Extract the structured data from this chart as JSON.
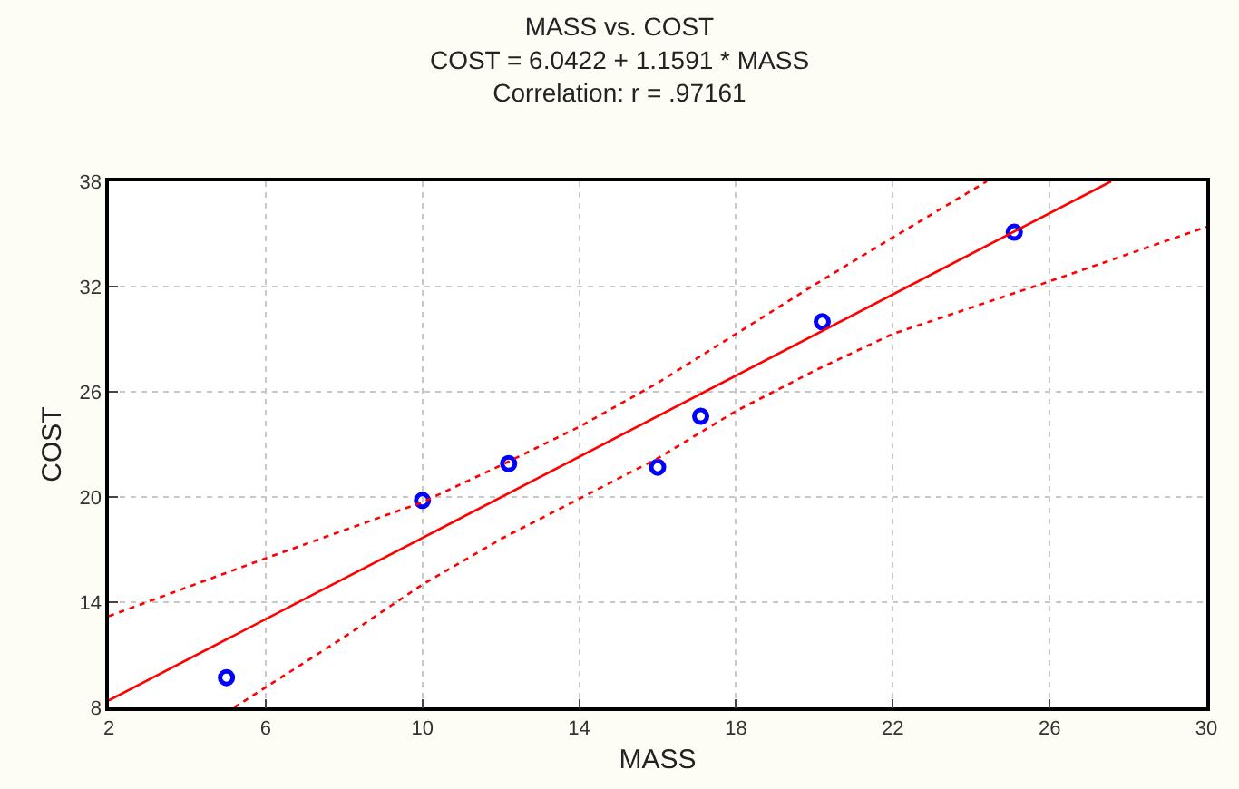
{
  "chart_data": {
    "type": "scatter",
    "title": "MASS vs. COST",
    "subtitle": "COST = 6.0422 + 1.1591 * MASS\nCorrelation: r = .97161",
    "xlabel": "MASS",
    "ylabel": "COST",
    "xlim": [
      2,
      30
    ],
    "xticks": [
      2,
      6,
      10,
      14,
      18,
      22,
      26,
      30
    ],
    "ylim": [
      8,
      38
    ],
    "yticks": [
      8,
      14,
      20,
      26,
      32,
      38
    ],
    "grid": true,
    "series": [
      {
        "color": "#0000ff",
        "marker": "circle",
        "x": [
          5.0,
          10.0,
          12.2,
          16.0,
          17.1,
          20.2,
          25.1
        ],
        "values": [
          9.7,
          19.8,
          21.9,
          21.7,
          24.6,
          30.0,
          35.1
        ]
      },
      {
        "type": "line",
        "color": "#ff0000",
        "marker": "none",
        "line_style": "solid",
        "x": [
          2,
          27.57
        ],
        "values": [
          8.4,
          38
        ]
      },
      {
        "type": "line",
        "color": "#ff0000",
        "marker": "none",
        "line_style": "dotted",
        "x": [
          2,
          6,
          10,
          12,
          14,
          16,
          18,
          20,
          22,
          24.4
        ],
        "values": [
          13.2,
          16.5,
          19.7,
          21.8,
          24.0,
          26.5,
          29.3,
          32.1,
          34.8,
          38
        ]
      },
      {
        "type": "line",
        "color": "#ff0000",
        "marker": "none",
        "line_style": "dotted",
        "x": [
          5.2,
          8,
          10,
          12,
          14,
          16,
          18,
          20,
          22,
          26,
          30
        ],
        "values": [
          8,
          12.0,
          15.0,
          17.6,
          19.9,
          22.2,
          24.9,
          27.2,
          29.3,
          32.3,
          35.4
        ]
      }
    ]
  }
}
